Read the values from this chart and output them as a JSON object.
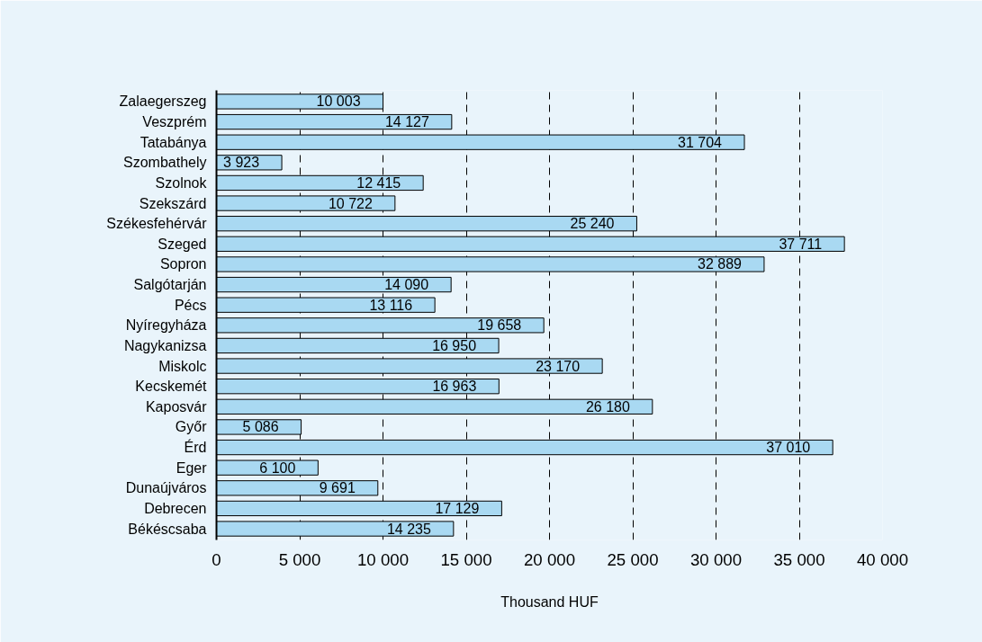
{
  "chart_data": {
    "type": "bar",
    "orientation": "horizontal",
    "xlabel": "Thousand HUF",
    "categories": [
      "Zalaegerszeg",
      "Veszprém",
      "Tatabánya",
      "Szombathely",
      "Szolnok",
      "Szekszárd",
      "Székesfehérvár",
      "Szeged",
      "Sopron",
      "Salgótarján",
      "Pécs",
      "Nyíregyháza",
      "Nagykanizsa",
      "Miskolc",
      "Kecskemét",
      "Kaposvár",
      "Győr",
      "Érd",
      "Eger",
      "Dunaújváros",
      "Debrecen",
      "Békéscsaba"
    ],
    "values": [
      10003,
      14127,
      31704,
      3923,
      12415,
      10722,
      25240,
      37711,
      32889,
      14090,
      13116,
      19658,
      16950,
      23170,
      16963,
      26180,
      5086,
      37010,
      6100,
      9691,
      17129,
      14235
    ],
    "value_labels": [
      "10 003",
      "14 127",
      "31 704",
      "3 923",
      "12 415",
      "10 722",
      "25 240",
      "37 711",
      "32 889",
      "14 090",
      "13 116",
      "19 658",
      "16 950",
      "23 170",
      "16 963",
      "26 180",
      "5 086",
      "37 010",
      "6 100",
      "9 691",
      "17 129",
      "14 235"
    ],
    "color": "#a9d9f2",
    "xlim": [
      0,
      40000
    ],
    "xticks": [
      0,
      {
        "value": 5000,
        "label": "5 000"
      },
      {
        "value": 10000,
        "label": "10 000"
      },
      {
        "value": 15000,
        "label": "15 000"
      },
      {
        "value": 20000,
        "label": "20 000"
      },
      {
        "value": 25000,
        "label": "25 000"
      },
      {
        "value": 30000,
        "label": "30 000"
      },
      {
        "value": 35000,
        "label": "35 000"
      },
      {
        "value": 40000,
        "label": "40 000"
      }
    ],
    "grid": "x"
  }
}
